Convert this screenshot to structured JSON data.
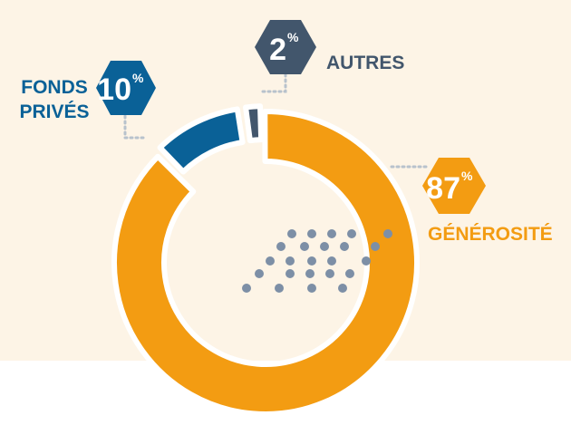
{
  "colors": {
    "background_band": "#fdf4e6",
    "generosite": "#f39c12",
    "fonds_prives": "#0a6197",
    "autres": "#42566c",
    "dots": "#7d8fa6",
    "connector": "#b8c2cc",
    "label_blue": "#0a6197",
    "label_gray": "#42566c",
    "label_orange": "#f39c12"
  },
  "chart_data": {
    "type": "pie",
    "variant": "donut",
    "slices": [
      {
        "label": "GÉNÉROSITÉ",
        "value": 87,
        "pct_main": "87",
        "pct_sign": "%",
        "color_key": "generosite"
      },
      {
        "label": "FONDS PRIVÉS",
        "label_lines": [
          "FONDS",
          "PRIVÉS"
        ],
        "value": 10,
        "pct_main": "10",
        "pct_sign": "%",
        "color_key": "fonds_prives"
      },
      {
        "label": "AUTRES",
        "value": 2,
        "pct_main": "2",
        "pct_sign": "%",
        "color_key": "autres"
      }
    ],
    "title": "",
    "legend": "none"
  }
}
